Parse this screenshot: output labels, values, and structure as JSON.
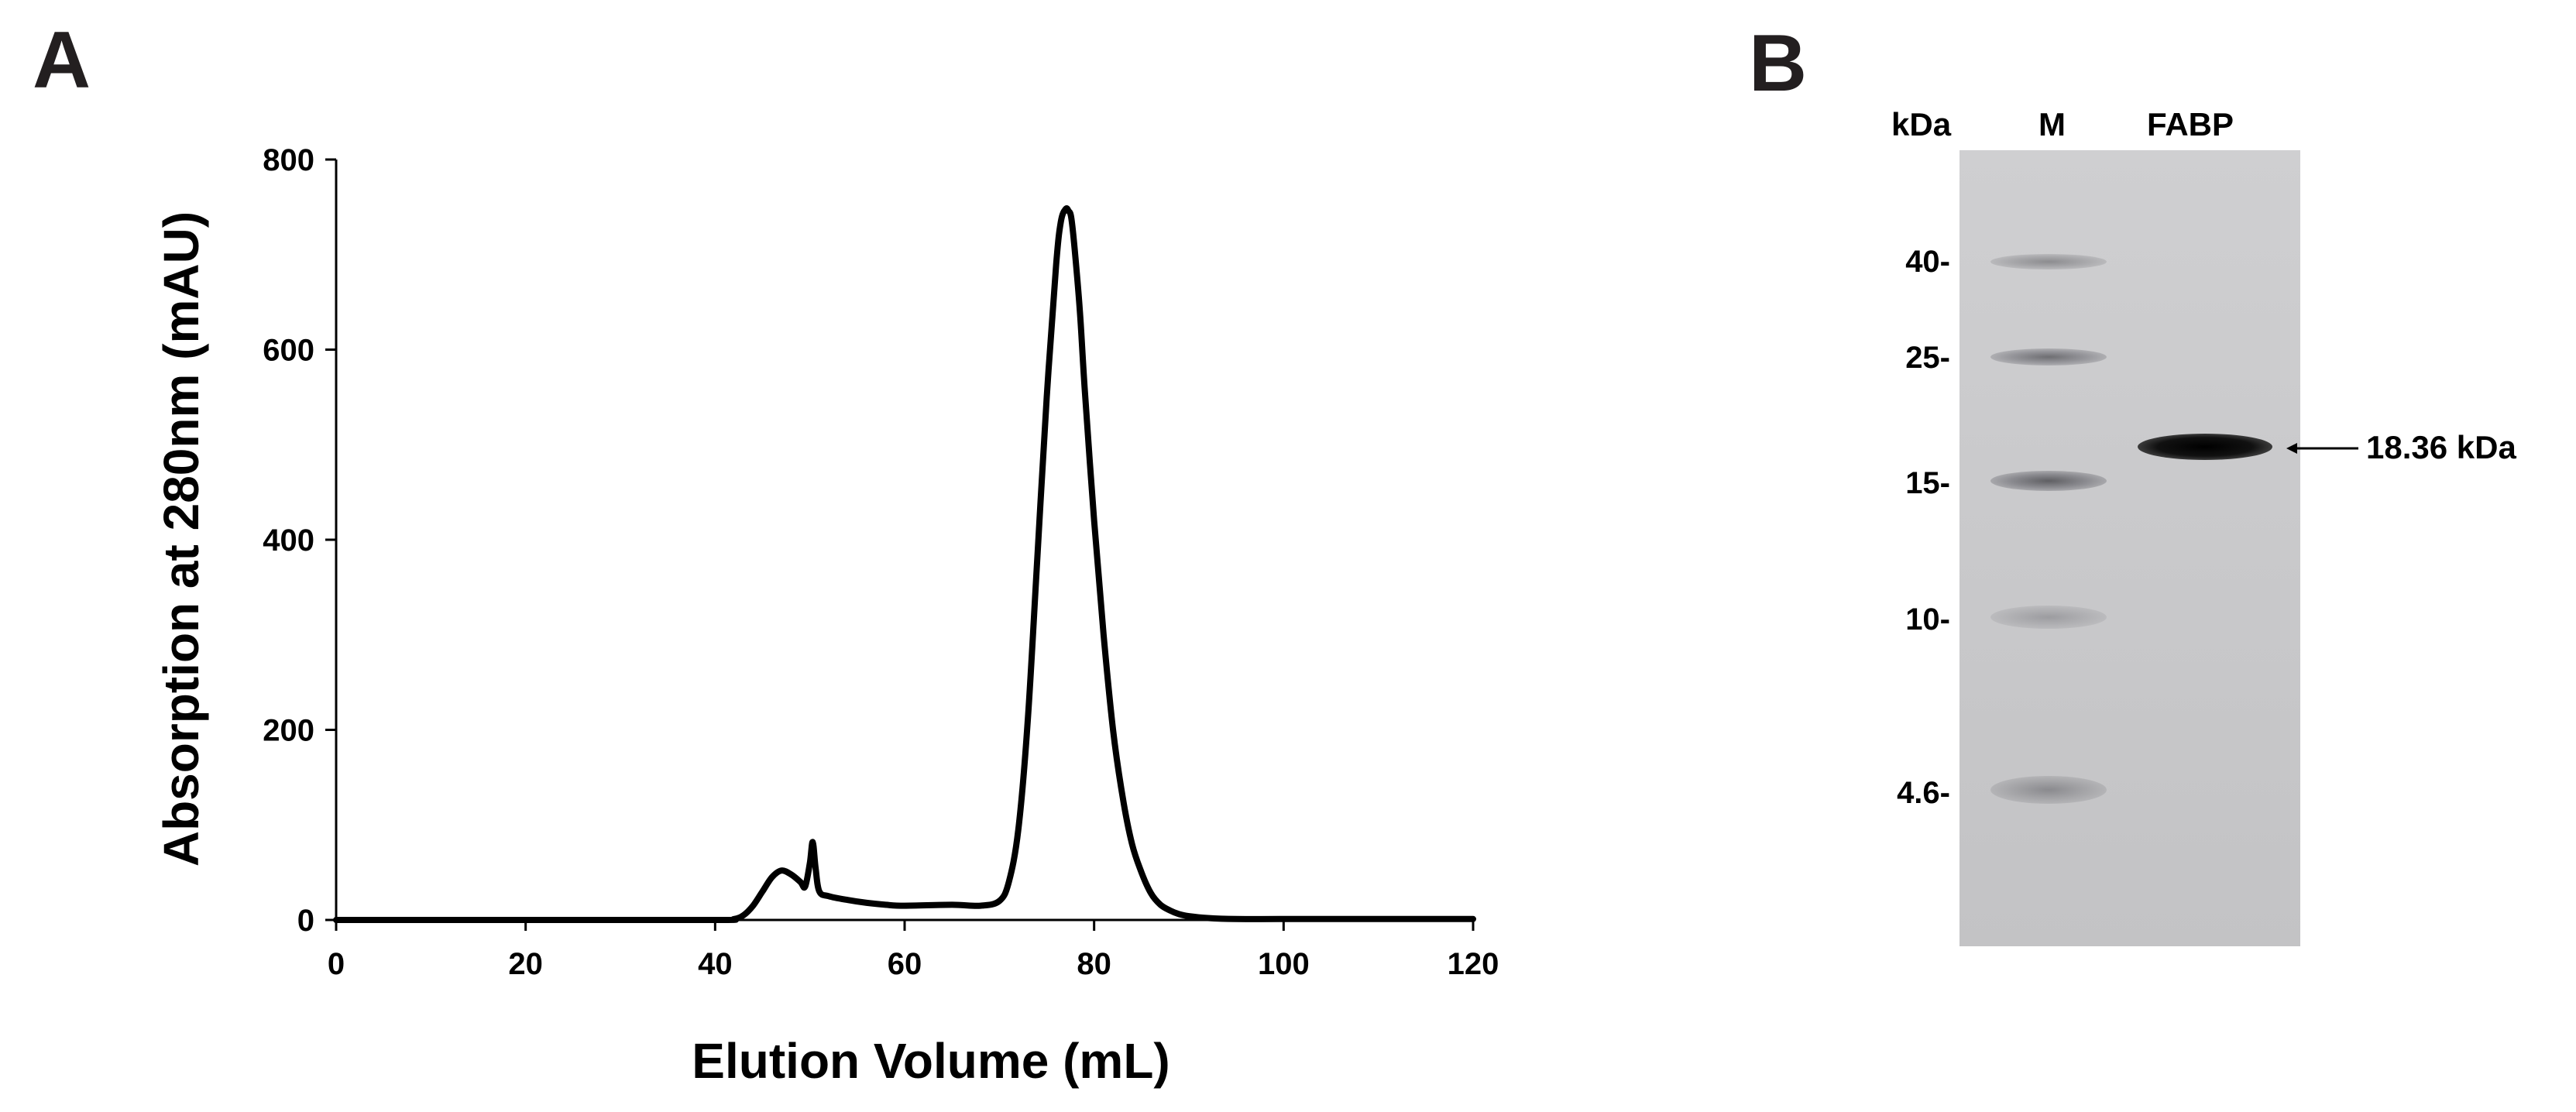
{
  "panels": {
    "a": "A",
    "b": "B"
  },
  "chart_data": {
    "type": "line",
    "xlabel": "Elution Volume (mL)",
    "ylabel": "Absorption at 280nm (mAU)",
    "xlim": [
      0,
      120
    ],
    "ylim": [
      0,
      800
    ],
    "xticks": [
      0,
      20,
      40,
      60,
      80,
      100,
      120
    ],
    "yticks": [
      0,
      200,
      400,
      600,
      800
    ],
    "grid": false,
    "series": [
      {
        "color": "#000000",
        "x": [
          0,
          20,
          40,
          42,
          43,
          44,
          45,
          46,
          47,
          48,
          49,
          49.5,
          50,
          50.3,
          50.6,
          51,
          52,
          54,
          56,
          58,
          60,
          65,
          68,
          70,
          71,
          72,
          73,
          74,
          75,
          76,
          76.5,
          77,
          77.3,
          77.6,
          78,
          78.5,
          79,
          80,
          81,
          82,
          83,
          84,
          85,
          86,
          87,
          88,
          89,
          90,
          92,
          95,
          100,
          110,
          120
        ],
        "y": [
          0,
          0,
          0,
          1,
          5,
          15,
          30,
          45,
          52,
          48,
          40,
          35,
          60,
          82,
          55,
          30,
          25,
          21,
          18,
          16,
          15,
          16,
          15,
          20,
          40,
          95,
          210,
          380,
          550,
          690,
          735,
          748,
          746,
          738,
          700,
          640,
          560,
          420,
          300,
          200,
          130,
          80,
          50,
          28,
          16,
          10,
          6,
          4,
          2,
          1,
          1,
          1,
          1
        ]
      }
    ]
  },
  "gel": {
    "header_unit": "kDa",
    "lane_marker": "M",
    "lane_sample": "FABP",
    "markers": [
      {
        "label": "40-",
        "kda": 40
      },
      {
        "label": "25-",
        "kda": 25
      },
      {
        "label": "15-",
        "kda": 15
      },
      {
        "label": "10-",
        "kda": 10
      },
      {
        "label": "4.6-",
        "kda": 4.6
      }
    ],
    "sample_band_label": "18.36 kDa",
    "gel_color": "#c9c9cb",
    "band_color": "#000000"
  }
}
